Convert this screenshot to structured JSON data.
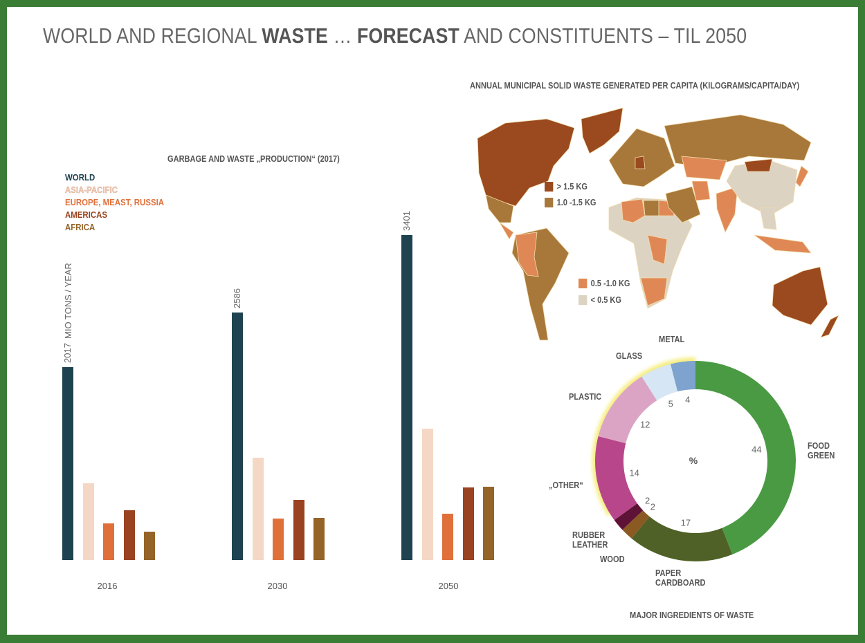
{
  "title": {
    "part1": "WORLD AND REGIONAL ",
    "bold1": "WASTE",
    "part2": " … ",
    "bold2": "FORECAST",
    "part3": " AND CONSTITUENTS – TIL 2050"
  },
  "chart_data": [
    {
      "type": "bar",
      "title": "GARBAGE AND WASTE „PRODUCTION“ (2017)",
      "ylabel": "MIO TONS / YEAR",
      "categories": [
        "2016",
        "2030",
        "2050"
      ],
      "legend_placement": "top-left",
      "series": [
        {
          "name": "WORLD",
          "color": "#1f4250",
          "values": [
            2017,
            2586,
            3401
          ],
          "labels": [
            "2017",
            "2586",
            "3401"
          ]
        },
        {
          "name": "ASIA-PACIFIC",
          "color": "#f5d7c6",
          "values": [
            800,
            1070,
            1375
          ]
        },
        {
          "name": "EUROPE, MEAST, RUSSIA",
          "color": "#e0703a",
          "values": [
            385,
            435,
            485
          ]
        },
        {
          "name": "AMERICAS",
          "color": "#9a4320",
          "values": [
            520,
            630,
            760
          ]
        },
        {
          "name": "AFRICA",
          "color": "#946428",
          "values": [
            295,
            440,
            765
          ]
        }
      ]
    },
    {
      "type": "pie",
      "variant": "donut",
      "title": "MAJOR INGREDIENTS OF WASTE",
      "center_label": "%",
      "slices": [
        {
          "name": "FOOD GREEN",
          "value": 44,
          "color": "#4a9a44"
        },
        {
          "name": "PAPER CARDBOARD",
          "value": 17,
          "color": "#4f6126"
        },
        {
          "name": "WOOD",
          "value": 2,
          "color": "#8a5a22"
        },
        {
          "name": "RUBBER LEATHER",
          "value": 2,
          "color": "#5e1236"
        },
        {
          "name": "„OTHER“",
          "value": 14,
          "color": "#b8468a"
        },
        {
          "name": "PLASTIC",
          "value": 12,
          "color": "#dba4c4"
        },
        {
          "name": "GLASS",
          "value": 5,
          "color": "#d6e6f4"
        },
        {
          "name": "METAL",
          "value": 4,
          "color": "#7ea3cf"
        }
      ]
    }
  ],
  "map": {
    "title": "ANNUAL MUNICIPAL SOLID WASTE GENERATED PER CAPITA (KILOGRAMS/CAPITA/DAY)",
    "legend": [
      {
        "label": ">   1.5 KG",
        "color": "#9a4a1e"
      },
      {
        "label": "1.0 -1.5 KG",
        "color": "#a8783a"
      },
      {
        "label": "0.5 -1.0 KG",
        "color": "#e08855"
      },
      {
        "label": "<   0.5 KG",
        "color": "#dcd3c2"
      }
    ]
  }
}
